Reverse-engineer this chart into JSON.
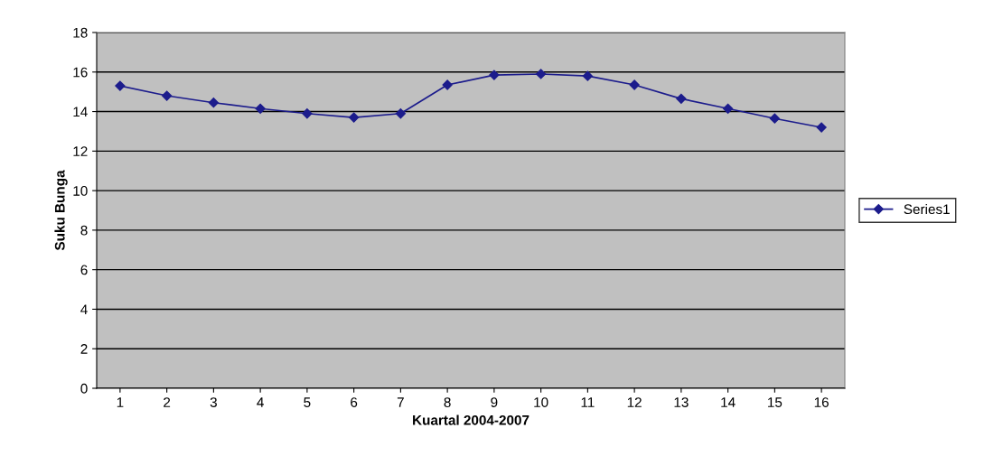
{
  "chart_data": {
    "type": "line",
    "xlabel": "Kuartal 2004-2007",
    "ylabel": "Suku Bunga",
    "categories": [
      "1",
      "2",
      "3",
      "4",
      "5",
      "6",
      "7",
      "8",
      "9",
      "10",
      "11",
      "12",
      "13",
      "14",
      "15",
      "16"
    ],
    "series": [
      {
        "name": "Series1",
        "color": "#1c1c8c",
        "values": [
          15.3,
          14.8,
          14.45,
          14.15,
          13.9,
          13.7,
          13.9,
          15.35,
          15.85,
          15.9,
          15.8,
          15.35,
          14.65,
          14.15,
          13.65,
          13.2
        ]
      }
    ],
    "ylim": [
      0,
      18
    ],
    "yticks": [
      0,
      2,
      4,
      6,
      8,
      10,
      12,
      14,
      16,
      18
    ],
    "grid": "y",
    "legend": "right",
    "marker": "diamond",
    "line_style": "solid"
  }
}
